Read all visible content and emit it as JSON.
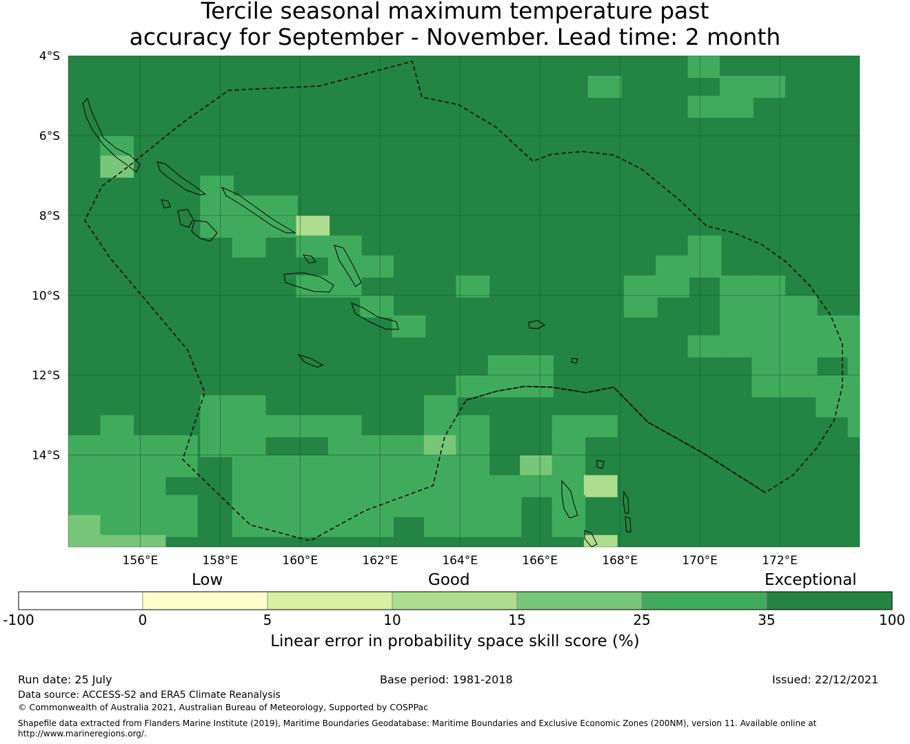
{
  "title_line1": "Tercile seasonal maximum temperature past",
  "title_line2": "accuracy for September - November. Lead time: 2 month",
  "map": {
    "lat_labels": [
      "4°S",
      "6°S",
      "8°S",
      "10°S",
      "12°S",
      "14°S"
    ],
    "lon_labels": [
      "156°E",
      "158°E",
      "160°E",
      "162°E",
      "164°E",
      "166°E",
      "168°E",
      "170°E",
      "172°E"
    ],
    "lon_range": [
      154.2,
      174.0
    ],
    "lat_range": [
      -4.0,
      -16.3
    ],
    "background_category": 6,
    "grid_cells": [
      {
        "lat": -4.0,
        "lon": 169.7,
        "cat": 5
      },
      {
        "lat": -4.0,
        "lon": 170.5,
        "cat": 6
      },
      {
        "lat": -4.5,
        "lon": 167.2,
        "cat": 5
      },
      {
        "lat": -4.5,
        "lon": 170.5,
        "cat": 5
      },
      {
        "lat": -4.5,
        "lon": 171.3,
        "cat": 5
      },
      {
        "lat": -5.0,
        "lon": 169.7,
        "cat": 5
      },
      {
        "lat": -5.0,
        "lon": 170.5,
        "cat": 5
      },
      {
        "lat": -6.0,
        "lon": 155.0,
        "cat": 5
      },
      {
        "lat": -6.5,
        "lon": 155.0,
        "cat": 4
      },
      {
        "lat": -7.0,
        "lon": 157.5,
        "cat": 5
      },
      {
        "lat": -7.5,
        "lon": 157.5,
        "cat": 5
      },
      {
        "lat": -7.5,
        "lon": 158.3,
        "cat": 5
      },
      {
        "lat": -7.5,
        "lon": 159.1,
        "cat": 5
      },
      {
        "lat": -8.0,
        "lon": 157.5,
        "cat": 5
      },
      {
        "lat": -8.0,
        "lon": 158.3,
        "cat": 5
      },
      {
        "lat": -8.0,
        "lon": 159.1,
        "cat": 5
      },
      {
        "lat": -8.0,
        "lon": 159.9,
        "cat": 3
      },
      {
        "lat": -8.5,
        "lon": 158.3,
        "cat": 5
      },
      {
        "lat": -8.5,
        "lon": 159.9,
        "cat": 5
      },
      {
        "lat": -8.5,
        "lon": 160.7,
        "cat": 5
      },
      {
        "lat": -8.5,
        "lon": 169.7,
        "cat": 5
      },
      {
        "lat": -9.0,
        "lon": 160.7,
        "cat": 5
      },
      {
        "lat": -9.0,
        "lon": 161.5,
        "cat": 5
      },
      {
        "lat": -9.0,
        "lon": 168.9,
        "cat": 5
      },
      {
        "lat": -9.0,
        "lon": 169.7,
        "cat": 5
      },
      {
        "lat": -9.5,
        "lon": 159.9,
        "cat": 5
      },
      {
        "lat": -9.5,
        "lon": 160.7,
        "cat": 5
      },
      {
        "lat": -9.5,
        "lon": 163.9,
        "cat": 5
      },
      {
        "lat": -9.5,
        "lon": 168.1,
        "cat": 5
      },
      {
        "lat": -9.5,
        "lon": 168.9,
        "cat": 5
      },
      {
        "lat": -9.5,
        "lon": 170.5,
        "cat": 5
      },
      {
        "lat": -9.5,
        "lon": 171.3,
        "cat": 5
      },
      {
        "lat": -10.0,
        "lon": 161.5,
        "cat": 5
      },
      {
        "lat": -10.0,
        "lon": 168.1,
        "cat": 5
      },
      {
        "lat": -10.0,
        "lon": 170.5,
        "cat": 5
      },
      {
        "lat": -10.0,
        "lon": 171.3,
        "cat": 5
      },
      {
        "lat": -10.0,
        "lon": 172.1,
        "cat": 5
      },
      {
        "lat": -10.5,
        "lon": 162.3,
        "cat": 5
      },
      {
        "lat": -10.5,
        "lon": 170.5,
        "cat": 5
      },
      {
        "lat": -10.5,
        "lon": 171.3,
        "cat": 5
      },
      {
        "lat": -10.5,
        "lon": 172.1,
        "cat": 5
      },
      {
        "lat": -10.5,
        "lon": 172.9,
        "cat": 5
      },
      {
        "lat": -10.5,
        "lon": 173.7,
        "cat": 5
      },
      {
        "lat": -11.0,
        "lon": 169.7,
        "cat": 5
      },
      {
        "lat": -11.0,
        "lon": 170.5,
        "cat": 5
      },
      {
        "lat": -11.0,
        "lon": 171.3,
        "cat": 5
      },
      {
        "lat": -11.0,
        "lon": 172.1,
        "cat": 5
      },
      {
        "lat": -11.0,
        "lon": 172.9,
        "cat": 5
      },
      {
        "lat": -11.0,
        "lon": 173.7,
        "cat": 5
      },
      {
        "lat": -11.5,
        "lon": 164.7,
        "cat": 5
      },
      {
        "lat": -11.5,
        "lon": 165.5,
        "cat": 5
      },
      {
        "lat": -11.5,
        "lon": 171.3,
        "cat": 5
      },
      {
        "lat": -11.5,
        "lon": 172.1,
        "cat": 5
      },
      {
        "lat": -11.5,
        "lon": 173.7,
        "cat": 5
      },
      {
        "lat": -12.0,
        "lon": 163.9,
        "cat": 5
      },
      {
        "lat": -12.0,
        "lon": 164.7,
        "cat": 5
      },
      {
        "lat": -12.0,
        "lon": 165.5,
        "cat": 5
      },
      {
        "lat": -12.0,
        "lon": 171.3,
        "cat": 5
      },
      {
        "lat": -12.0,
        "lon": 172.1,
        "cat": 5
      },
      {
        "lat": -12.0,
        "lon": 172.9,
        "cat": 5
      },
      {
        "lat": -12.0,
        "lon": 173.7,
        "cat": 5
      },
      {
        "lat": -12.5,
        "lon": 157.5,
        "cat": 5
      },
      {
        "lat": -12.5,
        "lon": 158.3,
        "cat": 5
      },
      {
        "lat": -12.5,
        "lon": 163.1,
        "cat": 5
      },
      {
        "lat": -12.5,
        "lon": 172.9,
        "cat": 5
      },
      {
        "lat": -12.5,
        "lon": 173.7,
        "cat": 5
      },
      {
        "lat": -13.0,
        "lon": 155.0,
        "cat": 5
      },
      {
        "lat": -13.0,
        "lon": 157.5,
        "cat": 5
      },
      {
        "lat": -13.0,
        "lon": 158.3,
        "cat": 5
      },
      {
        "lat": -13.0,
        "lon": 159.1,
        "cat": 5
      },
      {
        "lat": -13.0,
        "lon": 159.9,
        "cat": 5
      },
      {
        "lat": -13.0,
        "lon": 160.7,
        "cat": 5
      },
      {
        "lat": -13.0,
        "lon": 163.1,
        "cat": 5
      },
      {
        "lat": -13.0,
        "lon": 163.9,
        "cat": 5
      },
      {
        "lat": -13.0,
        "lon": 166.3,
        "cat": 5
      },
      {
        "lat": -13.0,
        "lon": 167.1,
        "cat": 5
      },
      {
        "lat": -13.0,
        "lon": 173.7,
        "cat": 5
      },
      {
        "lat": -13.5,
        "lon": 154.2,
        "cat": 5
      },
      {
        "lat": -13.5,
        "lon": 155.0,
        "cat": 5
      },
      {
        "lat": -13.5,
        "lon": 155.8,
        "cat": 5
      },
      {
        "lat": -13.5,
        "lon": 156.6,
        "cat": 5
      },
      {
        "lat": -13.5,
        "lon": 157.5,
        "cat": 5
      },
      {
        "lat": -13.5,
        "lon": 158.3,
        "cat": 5
      },
      {
        "lat": -13.5,
        "lon": 160.7,
        "cat": 5
      },
      {
        "lat": -13.5,
        "lon": 161.5,
        "cat": 5
      },
      {
        "lat": -13.5,
        "lon": 162.3,
        "cat": 5
      },
      {
        "lat": -13.5,
        "lon": 163.1,
        "cat": 4
      },
      {
        "lat": -13.5,
        "lon": 163.9,
        "cat": 5
      },
      {
        "lat": -13.5,
        "lon": 166.3,
        "cat": 5
      },
      {
        "lat": -14.0,
        "lon": 154.2,
        "cat": 5
      },
      {
        "lat": -14.0,
        "lon": 155.0,
        "cat": 5
      },
      {
        "lat": -14.0,
        "lon": 155.8,
        "cat": 5
      },
      {
        "lat": -14.0,
        "lon": 156.6,
        "cat": 5
      },
      {
        "lat": -14.0,
        "lon": 158.3,
        "cat": 5
      },
      {
        "lat": -14.0,
        "lon": 159.1,
        "cat": 5
      },
      {
        "lat": -14.0,
        "lon": 159.9,
        "cat": 5
      },
      {
        "lat": -14.0,
        "lon": 160.7,
        "cat": 5
      },
      {
        "lat": -14.0,
        "lon": 161.5,
        "cat": 5
      },
      {
        "lat": -14.0,
        "lon": 162.3,
        "cat": 5
      },
      {
        "lat": -14.0,
        "lon": 163.1,
        "cat": 5
      },
      {
        "lat": -14.0,
        "lon": 163.9,
        "cat": 5
      },
      {
        "lat": -14.0,
        "lon": 165.5,
        "cat": 4
      },
      {
        "lat": -14.0,
        "lon": 166.3,
        "cat": 5
      },
      {
        "lat": -14.5,
        "lon": 154.2,
        "cat": 5
      },
      {
        "lat": -14.5,
        "lon": 155.0,
        "cat": 5
      },
      {
        "lat": -14.5,
        "lon": 155.8,
        "cat": 5
      },
      {
        "lat": -14.5,
        "lon": 158.3,
        "cat": 5
      },
      {
        "lat": -14.5,
        "lon": 159.1,
        "cat": 5
      },
      {
        "lat": -14.5,
        "lon": 159.9,
        "cat": 5
      },
      {
        "lat": -14.5,
        "lon": 160.7,
        "cat": 5
      },
      {
        "lat": -14.5,
        "lon": 161.5,
        "cat": 5
      },
      {
        "lat": -14.5,
        "lon": 162.3,
        "cat": 5
      },
      {
        "lat": -14.5,
        "lon": 163.1,
        "cat": 5
      },
      {
        "lat": -14.5,
        "lon": 163.9,
        "cat": 5
      },
      {
        "lat": -14.5,
        "lon": 164.7,
        "cat": 5
      },
      {
        "lat": -14.5,
        "lon": 165.5,
        "cat": 5
      },
      {
        "lat": -14.5,
        "lon": 166.3,
        "cat": 5
      },
      {
        "lat": -14.5,
        "lon": 167.1,
        "cat": 3
      },
      {
        "lat": -15.0,
        "lon": 154.2,
        "cat": 5
      },
      {
        "lat": -15.0,
        "lon": 155.0,
        "cat": 5
      },
      {
        "lat": -15.0,
        "lon": 155.8,
        "cat": 5
      },
      {
        "lat": -15.0,
        "lon": 156.6,
        "cat": 5
      },
      {
        "lat": -15.0,
        "lon": 158.3,
        "cat": 5
      },
      {
        "lat": -15.0,
        "lon": 159.1,
        "cat": 5
      },
      {
        "lat": -15.0,
        "lon": 159.9,
        "cat": 5
      },
      {
        "lat": -15.0,
        "lon": 160.7,
        "cat": 5
      },
      {
        "lat": -15.0,
        "lon": 161.5,
        "cat": 5
      },
      {
        "lat": -15.0,
        "lon": 162.3,
        "cat": 5
      },
      {
        "lat": -15.0,
        "lon": 163.1,
        "cat": 5
      },
      {
        "lat": -15.0,
        "lon": 163.9,
        "cat": 5
      },
      {
        "lat": -15.0,
        "lon": 164.7,
        "cat": 5
      },
      {
        "lat": -15.0,
        "lon": 166.3,
        "cat": 5
      },
      {
        "lat": -15.5,
        "lon": 154.2,
        "cat": 4
      },
      {
        "lat": -15.5,
        "lon": 155.0,
        "cat": 5
      },
      {
        "lat": -15.5,
        "lon": 155.8,
        "cat": 5
      },
      {
        "lat": -15.5,
        "lon": 156.6,
        "cat": 5
      },
      {
        "lat": -15.5,
        "lon": 158.3,
        "cat": 5
      },
      {
        "lat": -15.5,
        "lon": 159.1,
        "cat": 5
      },
      {
        "lat": -15.5,
        "lon": 159.9,
        "cat": 5
      },
      {
        "lat": -15.5,
        "lon": 160.7,
        "cat": 5
      },
      {
        "lat": -15.5,
        "lon": 161.5,
        "cat": 5
      },
      {
        "lat": -15.5,
        "lon": 163.1,
        "cat": 5
      },
      {
        "lat": -15.5,
        "lon": 163.9,
        "cat": 5
      },
      {
        "lat": -15.5,
        "lon": 164.7,
        "cat": 5
      },
      {
        "lat": -15.5,
        "lon": 166.3,
        "cat": 5
      },
      {
        "lat": -16.0,
        "lon": 154.2,
        "cat": 4
      },
      {
        "lat": -16.0,
        "lon": 155.0,
        "cat": 4
      },
      {
        "lat": -16.0,
        "lon": 155.8,
        "cat": 4
      },
      {
        "lat": -16.0,
        "lon": 167.1,
        "cat": 3
      }
    ]
  },
  "colorbar": {
    "category_labels": [
      "Low",
      "Good",
      "Exceptional"
    ],
    "ticks": [
      "-100",
      "0",
      "5",
      "10",
      "15",
      "25",
      "35",
      "100"
    ],
    "colors": [
      "#ffffff",
      "#ffffcc",
      "#d9f0a3",
      "#addd8e",
      "#78c679",
      "#41ab5d",
      "#238443"
    ],
    "title": "Linear error in probability space skill score (%)"
  },
  "footer": {
    "run_date": "Run date: 25 July",
    "base_period": "Base period: 1981-2018",
    "issued": "Issued: 22/12/2021",
    "data_source": "Data source: ACCESS-S2 and ERA5 Climate Reanalysis",
    "copyright": "© Commonwealth of Australia 2021, Australian Bureau of Meteorology, Supported by COSPPac",
    "shapefile_line1": "Shapefile data extracted from Flanders Marine Institute (2019), Maritime Boundaries Geodatabase: Maritime Boundaries and Exclusive Economic Zones (200NM), version 11. Available online at",
    "shapefile_line2": "http://www.marineregions.org/."
  }
}
